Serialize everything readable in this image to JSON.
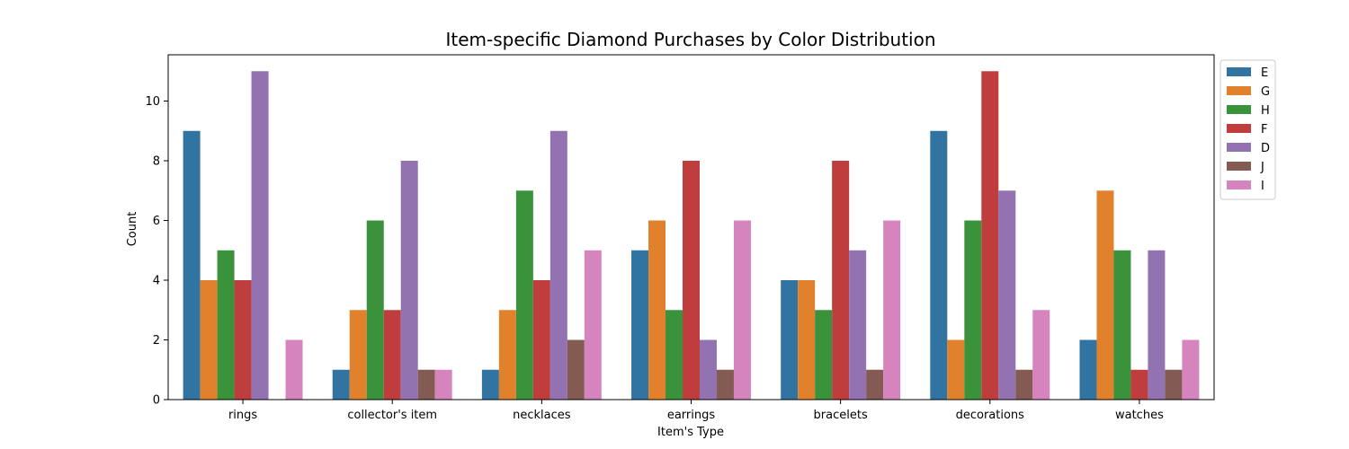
{
  "chart_data": {
    "type": "bar",
    "title": "Item-specific Diamond Purchases by Color Distribution",
    "xlabel": "Item's Type",
    "ylabel": "Count",
    "categories": [
      "rings",
      "collector's item",
      "necklaces",
      "earrings",
      "bracelets",
      "decorations",
      "watches"
    ],
    "series": [
      {
        "name": "E",
        "color": "#3274a1",
        "values": [
          9,
          1,
          1,
          5,
          4,
          9,
          2
        ]
      },
      {
        "name": "G",
        "color": "#e1812c",
        "values": [
          4,
          3,
          3,
          6,
          4,
          2,
          7
        ]
      },
      {
        "name": "H",
        "color": "#3a923a",
        "values": [
          5,
          6,
          7,
          3,
          3,
          6,
          5
        ]
      },
      {
        "name": "F",
        "color": "#c03d3e",
        "values": [
          4,
          3,
          4,
          8,
          8,
          11,
          1
        ]
      },
      {
        "name": "D",
        "color": "#9372b2",
        "values": [
          11,
          8,
          9,
          2,
          5,
          7,
          5
        ]
      },
      {
        "name": "J",
        "color": "#845b53",
        "values": [
          0,
          1,
          2,
          1,
          1,
          1,
          1
        ]
      },
      {
        "name": "I",
        "color": "#d684bd",
        "values": [
          2,
          1,
          5,
          6,
          6,
          3,
          2
        ]
      }
    ],
    "ylim": [
      0,
      11.55
    ],
    "yticks": [
      0,
      2,
      4,
      6,
      8,
      10
    ],
    "grid": false,
    "legend_position": "outside-top-right"
  }
}
